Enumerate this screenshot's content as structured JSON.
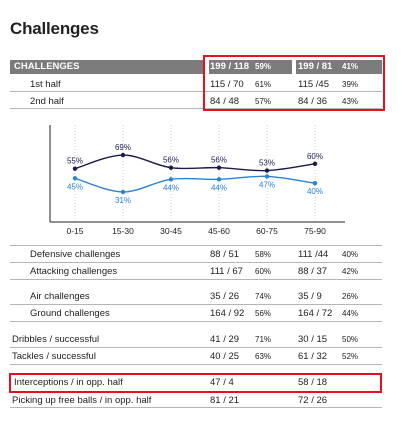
{
  "title": "Challenges",
  "header": {
    "label": "CHALLENGES",
    "left": {
      "value": "199 / 118",
      "pct": "59%"
    },
    "right": {
      "value": "199 / 81",
      "pct": "41%"
    }
  },
  "top_rows": [
    {
      "label": "1st half",
      "lv": "115 / 70",
      "lp": "61%",
      "rv": "115 /45",
      "rp": "39%"
    },
    {
      "label": "2nd half",
      "lv": "84 / 48",
      "lp": "57%",
      "rv": "84 / 36",
      "rp": "43%"
    }
  ],
  "chart_data": {
    "type": "line",
    "categories": [
      "0-15",
      "15-30",
      "30-45",
      "45-60",
      "60-75",
      "75-90"
    ],
    "series": [
      {
        "color": "#1a1a4e",
        "values": [
          55,
          69,
          56,
          56,
          53,
          60
        ],
        "labels": [
          "55%",
          "69%",
          "56%",
          "56%",
          "53%",
          "60%"
        ]
      },
      {
        "color": "#2b82d4",
        "values": [
          45,
          31,
          44,
          44,
          47,
          40
        ],
        "labels": [
          "45%",
          "31%",
          "44%",
          "44%",
          "47%",
          "40%"
        ]
      }
    ],
    "ylim": [
      0,
      100
    ],
    "grid": true
  },
  "bottom_rows": [
    {
      "label": "Defensive challenges",
      "lv": "88 / 51",
      "lp": "58%",
      "rv": "111 /44",
      "rp": "40%"
    },
    {
      "label": "Attacking challenges",
      "lv": "111 / 67",
      "lp": "60%",
      "rv": "88 / 37",
      "rp": "42%"
    },
    {
      "label": "Air challenges",
      "lv": "35 / 26",
      "lp": "74%",
      "rv": "35 / 9",
      "rp": "26%"
    },
    {
      "label": "Ground challenges",
      "lv": "164 / 92",
      "lp": "56%",
      "rv": "164 / 72",
      "rp": "44%"
    },
    {
      "label": "Dribbles / successful",
      "lv": "41 / 29",
      "lp": "71%",
      "rv": "30 / 15",
      "rp": "50%"
    },
    {
      "label": "Tackles / successful",
      "lv": "40 / 25",
      "lp": "63%",
      "rv": "61 / 32",
      "rp": "52%"
    },
    {
      "label": "Interceptions / in opp. half",
      "lv": "47 / 4",
      "lp": "",
      "rv": "58 / 18",
      "rp": ""
    },
    {
      "label": "Picking up free balls / in opp. half",
      "lv": "81 / 21",
      "lp": "",
      "rv": "72 / 26",
      "rp": ""
    }
  ],
  "colors": {
    "highlight": "#e8101f",
    "header_bg": "#7b7b7b",
    "series1": "#1a1a4e",
    "series2": "#2b82d4"
  }
}
